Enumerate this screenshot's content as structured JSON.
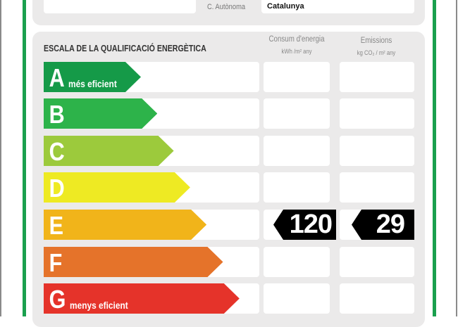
{
  "location": {
    "region_label": "C. Autònoma",
    "region_value": "Catalunya"
  },
  "scale": {
    "title": "ESCALA DE LA QUALIFICACIÓ ENERGÈTICA",
    "col_energy": {
      "label": "Consum d'energia",
      "unit": "kWh /m² any"
    },
    "col_emissions": {
      "label": "Emissions",
      "unit": "kg CO₂ / m² any"
    },
    "classes": [
      {
        "letter": "A",
        "note": "més eficient",
        "color": "#159a48"
      },
      {
        "letter": "B",
        "note": "",
        "color": "#2db34a"
      },
      {
        "letter": "C",
        "note": "",
        "color": "#9cca3c"
      },
      {
        "letter": "D",
        "note": "",
        "color": "#eeea23"
      },
      {
        "letter": "E",
        "note": "",
        "color": "#f1b41a"
      },
      {
        "letter": "F",
        "note": "",
        "color": "#e5732a"
      },
      {
        "letter": "G",
        "note": "menys eficient",
        "color": "#e5332a"
      }
    ]
  },
  "rating": {
    "class": "E",
    "energy_value": "120",
    "emissions_value": "29"
  }
}
